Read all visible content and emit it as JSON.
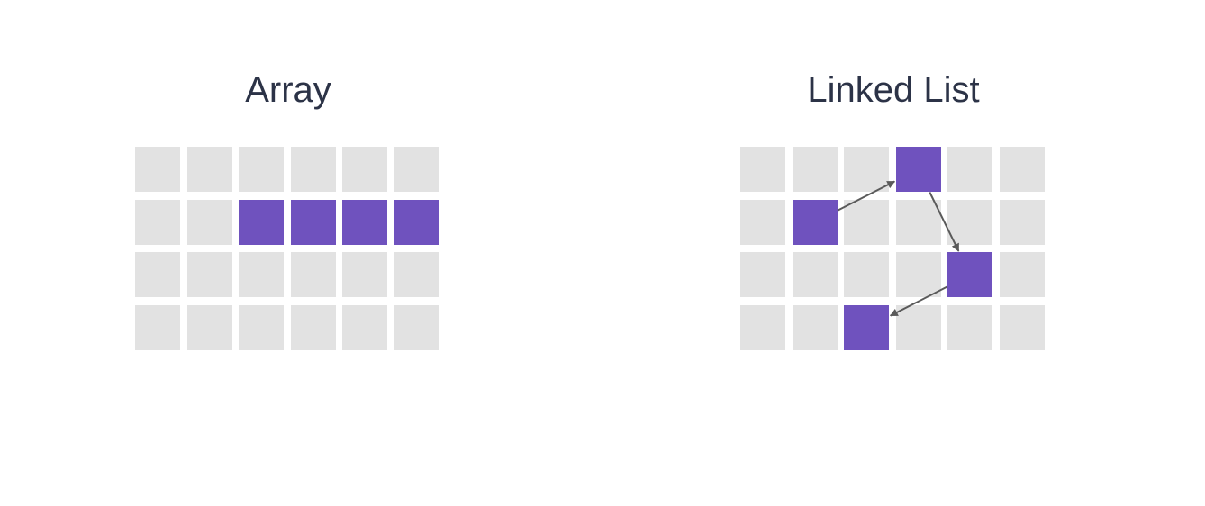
{
  "colors": {
    "background": "#ffffff",
    "title_text": "#2c3347",
    "empty_cell": "#e2e2e2",
    "filled_cell": "#6f52be",
    "arrow": "#5a5a5a"
  },
  "grid": {
    "rows": 4,
    "cols": 6
  },
  "panels": [
    {
      "id": "array",
      "title": "Array",
      "filled_cells": [
        [
          1,
          2
        ],
        [
          1,
          3
        ],
        [
          1,
          4
        ],
        [
          1,
          5
        ]
      ],
      "links": []
    },
    {
      "id": "linked",
      "title": "Linked List",
      "filled_cells": [
        [
          0,
          3
        ],
        [
          1,
          1
        ],
        [
          2,
          4
        ],
        [
          3,
          2
        ]
      ],
      "links": [
        {
          "from": [
            1,
            1
          ],
          "to": [
            0,
            3
          ]
        },
        {
          "from": [
            0,
            3
          ],
          "to": [
            2,
            4
          ]
        },
        {
          "from": [
            2,
            4
          ],
          "to": [
            3,
            2
          ]
        }
      ]
    }
  ]
}
